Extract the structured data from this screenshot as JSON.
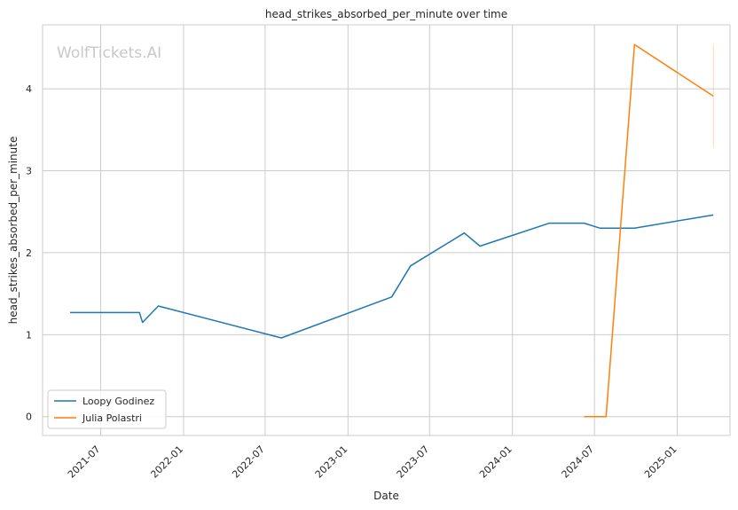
{
  "watermark": "WolfTickets.AI",
  "chart_data": {
    "type": "line",
    "title": "head_strikes_absorbed_per_minute over time",
    "xlabel": "Date",
    "ylabel": "head_strikes_absorbed_per_minute",
    "xlim": [
      "2021-02-22",
      "2025-04-28"
    ],
    "ylim": [
      -0.23,
      4.78
    ],
    "x_ticks": [
      "2021-07",
      "2022-01",
      "2022-07",
      "2023-01",
      "2023-07",
      "2024-01",
      "2024-07",
      "2025-01"
    ],
    "y_ticks": [
      0,
      1,
      2,
      3,
      4
    ],
    "grid": true,
    "legend_position": "lower-left",
    "series": [
      {
        "name": "Loopy Godinez",
        "color": "#1f77b4",
        "points": [
          {
            "x": "2021-04-24",
            "y": 1.27
          },
          {
            "x": "2021-09-25",
            "y": 1.27
          },
          {
            "x": "2021-10-02",
            "y": 1.15
          },
          {
            "x": "2021-11-06",
            "y": 1.35
          },
          {
            "x": "2022-08-06",
            "y": 0.96
          },
          {
            "x": "2023-04-08",
            "y": 1.46
          },
          {
            "x": "2023-05-20",
            "y": 1.84
          },
          {
            "x": "2023-09-16",
            "y": 2.24
          },
          {
            "x": "2023-10-21",
            "y": 2.08
          },
          {
            "x": "2024-03-23",
            "y": 2.36
          },
          {
            "x": "2024-06-08",
            "y": 2.36
          },
          {
            "x": "2024-07-13",
            "y": 2.3
          },
          {
            "x": "2024-09-28",
            "y": 2.3
          },
          {
            "x": "2025-03-22",
            "y": 2.46
          }
        ]
      },
      {
        "name": "Julia Polastri",
        "color": "#ff7f0e",
        "points": [
          {
            "x": "2024-06-08",
            "y": 0.0
          },
          {
            "x": "2024-07-27",
            "y": 0.0
          },
          {
            "x": "2024-09-28",
            "y": 4.54
          },
          {
            "x": "2025-03-22",
            "y": 3.91
          }
        ],
        "error_bar": {
          "x": "2025-03-22",
          "low": 3.28,
          "high": 4.54
        }
      }
    ]
  }
}
